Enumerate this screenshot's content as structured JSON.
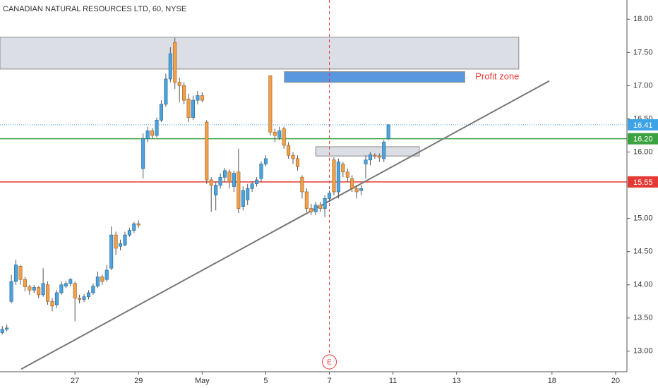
{
  "chart_data": {
    "type": "candlestick",
    "title": "CANADIAN NATURAL RESOURCES LTD, 60, NYSE",
    "up_color": "#4ea3dc",
    "down_color": "#f0a24a",
    "open": [
      13.28,
      13.33,
      13.75,
      14.05,
      14.28,
      14.08,
      13.97,
      13.92,
      13.96,
      13.85,
      14.0,
      13.75,
      13.7,
      13.88,
      13.98,
      14.02,
      14.02,
      13.8,
      13.78,
      13.82,
      13.88,
      13.98,
      14.12,
      14.08,
      14.25,
      14.75,
      14.58,
      14.6,
      14.75,
      14.82,
      14.92,
      15.75,
      16.2,
      16.32,
      16.25,
      16.48,
      16.72,
      17.1,
      17.65,
      17.05,
      17.0,
      16.8,
      16.52,
      16.78,
      16.85,
      16.45,
      15.58,
      15.35,
      15.5,
      15.62,
      15.7,
      15.48,
      15.7,
      15.18,
      15.28,
      15.45,
      15.52,
      15.6,
      15.82,
      17.15,
      16.3,
      16.22,
      16.35,
      16.1,
      15.95,
      15.9,
      15.62,
      15.4,
      15.15,
      15.1,
      15.2,
      15.15,
      15.3,
      15.88,
      15.4,
      15.82,
      15.7,
      15.6,
      15.45,
      15.42,
      15.82,
      15.88,
      15.95,
      15.94,
      15.9,
      16.2
    ],
    "high": [
      13.38,
      13.4,
      14.15,
      14.38,
      14.3,
      14.12,
      14.0,
      14.0,
      13.98,
      14.25,
      14.05,
      13.8,
      13.92,
      14.05,
      14.06,
      14.1,
      14.05,
      13.85,
      13.86,
      13.92,
      14.02,
      14.2,
      14.15,
      14.3,
      14.88,
      14.8,
      14.68,
      14.8,
      14.86,
      14.95,
      14.97,
      16.28,
      16.38,
      16.36,
      16.52,
      16.78,
      17.18,
      17.58,
      17.72,
      17.12,
      17.05,
      16.88,
      16.85,
      16.92,
      16.9,
      16.48,
      15.62,
      15.55,
      15.68,
      15.76,
      15.74,
      15.72,
      16.05,
      15.48,
      15.52,
      15.56,
      15.62,
      15.86,
      15.95,
      17.15,
      16.35,
      16.38,
      16.38,
      16.15,
      16.0,
      15.95,
      15.65,
      15.45,
      15.22,
      15.25,
      15.25,
      15.35,
      15.42,
      15.92,
      15.9,
      15.85,
      15.75,
      15.65,
      15.5,
      15.5,
      15.95,
      16.0,
      15.98,
      15.98,
      16.18,
      16.42
    ],
    "low": [
      13.25,
      13.3,
      13.72,
      14.0,
      14.0,
      13.9,
      13.85,
      13.88,
      13.8,
      13.82,
      13.7,
      13.6,
      13.65,
      13.85,
      13.95,
      13.98,
      13.45,
      13.72,
      13.74,
      13.78,
      13.85,
      13.95,
      14.0,
      14.05,
      14.22,
      14.45,
      14.52,
      14.58,
      14.72,
      14.78,
      14.86,
      15.6,
      16.15,
      16.2,
      16.22,
      16.45,
      16.68,
      17.05,
      16.95,
      16.75,
      16.72,
      16.45,
      16.48,
      16.72,
      16.75,
      15.52,
      15.1,
      15.12,
      15.45,
      15.55,
      15.45,
      15.4,
      15.08,
      15.12,
      15.2,
      15.4,
      15.48,
      15.55,
      15.78,
      16.25,
      16.15,
      16.18,
      16.05,
      15.9,
      15.82,
      15.72,
      15.3,
      15.1,
      15.05,
      15.05,
      15.1,
      15.02,
      15.25,
      15.35,
      15.3,
      15.62,
      15.55,
      15.4,
      15.3,
      15.35,
      15.6,
      15.8,
      15.9,
      15.85,
      15.85,
      16.18
    ],
    "close": [
      13.33,
      13.35,
      14.05,
      14.3,
      14.08,
      13.97,
      13.92,
      13.96,
      13.85,
      14.02,
      13.75,
      13.68,
      13.88,
      14.0,
      14.02,
      14.08,
      13.8,
      13.78,
      13.82,
      13.88,
      13.98,
      14.12,
      14.05,
      14.22,
      14.75,
      14.55,
      14.62,
      14.75,
      14.82,
      14.92,
      14.9,
      16.2,
      16.32,
      16.25,
      16.48,
      16.72,
      17.1,
      17.48,
      17.05,
      17.0,
      16.78,
      16.52,
      16.78,
      16.85,
      16.78,
      15.58,
      15.5,
      15.5,
      15.62,
      15.72,
      15.55,
      15.68,
      15.15,
      15.42,
      15.45,
      15.52,
      15.58,
      15.82,
      15.9,
      16.3,
      16.25,
      16.32,
      16.1,
      15.95,
      15.9,
      15.78,
      15.4,
      15.15,
      15.1,
      15.2,
      15.15,
      15.3,
      15.38,
      15.4,
      15.85,
      15.7,
      15.62,
      15.45,
      15.4,
      15.45,
      15.88,
      15.96,
      15.94,
      15.92,
      16.15,
      16.41
    ],
    "xlim": [
      -0.5,
      137.5
    ],
    "xticks": [
      {
        "value": 16,
        "label": "27"
      },
      {
        "value": 30,
        "label": "29"
      },
      {
        "value": 44,
        "label": "May"
      },
      {
        "value": 58,
        "label": "5"
      },
      {
        "value": 72,
        "label": "7"
      },
      {
        "value": 86,
        "label": "11"
      },
      {
        "value": 100,
        "label": "13"
      },
      {
        "value": 121,
        "label": "18"
      },
      {
        "value": 135,
        "label": "20"
      }
    ],
    "ylim": [
      12.69,
      18.29
    ],
    "yticks": [
      {
        "value": 13,
        "label": "13.00"
      },
      {
        "value": 13.5,
        "label": "13.50"
      },
      {
        "value": 14,
        "label": "14.00"
      },
      {
        "value": 14.5,
        "label": "14.50"
      },
      {
        "value": 15,
        "label": "15.00"
      },
      {
        "value": 15.5,
        "label": "15.50"
      },
      {
        "value": 16,
        "label": "16.00"
      },
      {
        "value": 16.5,
        "label": "16.50"
      },
      {
        "value": 17,
        "label": "17.00"
      },
      {
        "value": 17.5,
        "label": "17.50"
      },
      {
        "value": 18,
        "label": "18.00"
      }
    ],
    "hlines": [
      {
        "value": 16.41,
        "label": "16.41",
        "color": "#3ea3e5",
        "style": "dotted"
      },
      {
        "value": 16.2,
        "label": "16.20",
        "color": "#3aa33f",
        "style": "solid"
      },
      {
        "value": 15.55,
        "label": "15.55",
        "color": "#e53935",
        "style": "solid"
      }
    ],
    "zones": [
      {
        "x": [
          -0.5,
          113.7
        ],
        "y": [
          17.25,
          17.73
        ],
        "color": "#d6d8e2"
      },
      {
        "x": [
          62.1,
          101.8
        ],
        "y": [
          17.05,
          17.21
        ],
        "color": "#3d85d8",
        "text": "Profit zone",
        "text_color": "#e53935"
      },
      {
        "x": [
          69,
          91.8
        ],
        "y": [
          15.94,
          16.08
        ],
        "color": "#d6d8e2"
      }
    ],
    "trendline": {
      "x": [
        4.16,
        120.4
      ],
      "y": [
        12.73,
        17.07
      ],
      "color": "#777777"
    },
    "events": [
      {
        "x": 72,
        "label": "E",
        "color": "#e53935"
      }
    ]
  }
}
